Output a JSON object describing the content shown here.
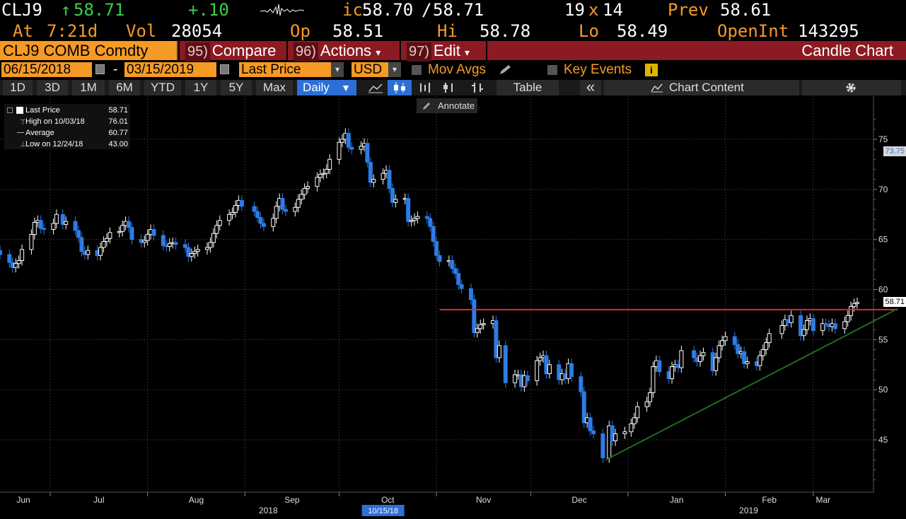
{
  "header": {
    "ticker": "CLJ9",
    "arrow": "↑",
    "last": "58.71",
    "change": "+.10",
    "ic_prefix": "ic",
    "bid": "58.70",
    "ask": "58.71",
    "sep": "/",
    "size_a": "19",
    "size_x": "x",
    "size_b": "14",
    "prev_label": "Prev",
    "prev": "58.61",
    "at_label": "At",
    "time": "7:21d",
    "vol_label": "Vol",
    "vol": "28054",
    "op_label": "Op",
    "op": "58.51",
    "hi_label": "Hi",
    "hi": "58.78",
    "lo_label": "Lo",
    "lo": "58.49",
    "oi_label": "OpenInt",
    "oi": "143295"
  },
  "menubar": {
    "security": "CLJ9 COMB Comdty",
    "compare_num": "95)",
    "compare": "Compare",
    "actions_num": "96)",
    "actions": "Actions",
    "edit_num": "97)",
    "edit": "Edit",
    "caret": "▾",
    "title": "Candle Chart"
  },
  "daterow": {
    "start": "06/15/2018",
    "dash": "-",
    "end": "03/15/2019",
    "field": "Last Price",
    "currency": "USD",
    "mov_avgs": "Mov Avgs",
    "key_events": "Key Events",
    "info": "i"
  },
  "toolbar": {
    "periods": [
      "1D",
      "3D",
      "1M",
      "6M",
      "YTD",
      "1Y",
      "5Y",
      "Max"
    ],
    "freq": "Daily",
    "table": "Table",
    "collapse": "«",
    "chart_content": "Chart Content"
  },
  "annotate": "Annotate",
  "legend": {
    "items": [
      {
        "label": "Last Price",
        "value": "58.71"
      },
      {
        "label": "High on 10/03/18",
        "value": "76.01"
      },
      {
        "label": "Average",
        "value": "60.77"
      },
      {
        "label": "Low on 12/24/18",
        "value": "43.00"
      }
    ]
  },
  "price_tags": {
    "upper": "73.75",
    "last": "58.71",
    "last_color": "#000000",
    "upper_color": "#3a6fd8"
  },
  "colors": {
    "accent": "#f59a25",
    "up_candle": "#ffffff",
    "down_candle": "#2d7be6",
    "resistance": "#e02b2b",
    "trendline": "#1f6b1f",
    "menubar": "#8c1a22"
  },
  "chart_data": {
    "type": "candlestick",
    "frequency": "Daily",
    "ylim": [
      40,
      78
    ],
    "yticks": [
      45,
      50,
      55,
      60,
      65,
      70,
      75
    ],
    "xlim": [
      "2018-06-15",
      "2019-03-15"
    ],
    "xticks": [
      {
        "date": "2018-06-15",
        "label": "Jun"
      },
      {
        "date": "2018-07-01",
        "label": "Jul"
      },
      {
        "date": "2018-08-01",
        "label": "Aug"
      },
      {
        "date": "2018-09-01",
        "label": "Sep"
      },
      {
        "date": "2018-10-01",
        "label": "Oct"
      },
      {
        "date": "2018-11-01",
        "label": "Nov"
      },
      {
        "date": "2018-12-01",
        "label": "Dec"
      },
      {
        "date": "2019-01-01",
        "label": "Jan"
      },
      {
        "date": "2019-02-01",
        "label": "Feb"
      },
      {
        "date": "2019-03-01",
        "label": "Mar"
      }
    ],
    "year_labels": [
      {
        "date": "2018-09-01",
        "label": "2018"
      },
      {
        "date": "2019-02-01",
        "label": "2019"
      }
    ],
    "crosshair_date_label": "10/15/18",
    "closes": [
      {
        "date": "2018-06-15",
        "value": 63.5
      },
      {
        "date": "2018-06-18",
        "value": 62.7
      },
      {
        "date": "2018-06-19",
        "value": 62.2
      },
      {
        "date": "2018-06-20",
        "value": 62.6
      },
      {
        "date": "2018-06-21",
        "value": 62.9
      },
      {
        "date": "2018-06-22",
        "value": 64.0
      },
      {
        "date": "2018-06-25",
        "value": 65.5
      },
      {
        "date": "2018-06-26",
        "value": 66.7
      },
      {
        "date": "2018-06-27",
        "value": 66.9
      },
      {
        "date": "2018-06-28",
        "value": 66.1
      },
      {
        "date": "2018-06-29",
        "value": 66.0
      },
      {
        "date": "2018-07-02",
        "value": 66.6
      },
      {
        "date": "2018-07-03",
        "value": 67.5
      },
      {
        "date": "2018-07-05",
        "value": 66.5
      },
      {
        "date": "2018-07-06",
        "value": 66.8
      },
      {
        "date": "2018-07-09",
        "value": 65.9
      },
      {
        "date": "2018-07-10",
        "value": 65.2
      },
      {
        "date": "2018-07-11",
        "value": 63.8
      },
      {
        "date": "2018-07-12",
        "value": 63.5
      },
      {
        "date": "2018-07-13",
        "value": 63.9
      },
      {
        "date": "2018-07-16",
        "value": 63.4
      },
      {
        "date": "2018-07-17",
        "value": 64.2
      },
      {
        "date": "2018-07-18",
        "value": 64.8
      },
      {
        "date": "2018-07-19",
        "value": 65.1
      },
      {
        "date": "2018-07-20",
        "value": 65.7
      },
      {
        "date": "2018-07-23",
        "value": 65.8
      },
      {
        "date": "2018-07-24",
        "value": 66.4
      },
      {
        "date": "2018-07-25",
        "value": 66.8
      },
      {
        "date": "2018-07-26",
        "value": 66.2
      },
      {
        "date": "2018-07-27",
        "value": 65.0
      },
      {
        "date": "2018-07-30",
        "value": 64.7
      },
      {
        "date": "2018-07-31",
        "value": 64.9
      },
      {
        "date": "2018-08-01",
        "value": 65.5
      },
      {
        "date": "2018-08-02",
        "value": 66.0
      },
      {
        "date": "2018-08-03",
        "value": 65.4
      },
      {
        "date": "2018-08-06",
        "value": 64.4
      },
      {
        "date": "2018-08-07",
        "value": 64.3
      },
      {
        "date": "2018-08-08",
        "value": 64.6
      },
      {
        "date": "2018-08-09",
        "value": 64.7
      },
      {
        "date": "2018-08-10",
        "value": 64.5
      },
      {
        "date": "2018-08-13",
        "value": 64.2
      },
      {
        "date": "2018-08-14",
        "value": 63.3
      },
      {
        "date": "2018-08-15",
        "value": 63.6
      },
      {
        "date": "2018-08-16",
        "value": 63.8
      },
      {
        "date": "2018-08-17",
        "value": 64.0
      },
      {
        "date": "2018-08-20",
        "value": 64.2
      },
      {
        "date": "2018-08-21",
        "value": 64.7
      },
      {
        "date": "2018-08-22",
        "value": 65.6
      },
      {
        "date": "2018-08-23",
        "value": 66.4
      },
      {
        "date": "2018-08-24",
        "value": 66.9
      },
      {
        "date": "2018-08-27",
        "value": 67.5
      },
      {
        "date": "2018-08-28",
        "value": 67.7
      },
      {
        "date": "2018-08-29",
        "value": 68.4
      },
      {
        "date": "2018-08-30",
        "value": 68.9
      },
      {
        "date": "2018-08-31",
        "value": 68.3
      },
      {
        "date": "2018-09-04",
        "value": 67.8
      },
      {
        "date": "2018-09-05",
        "value": 67.2
      },
      {
        "date": "2018-09-06",
        "value": 66.6
      },
      {
        "date": "2018-09-07",
        "value": 66.3
      },
      {
        "date": "2018-09-10",
        "value": 67.1
      },
      {
        "date": "2018-09-11",
        "value": 68.3
      },
      {
        "date": "2018-09-12",
        "value": 69.1
      },
      {
        "date": "2018-09-13",
        "value": 68.0
      },
      {
        "date": "2018-09-14",
        "value": 67.8
      },
      {
        "date": "2018-09-17",
        "value": 68.2
      },
      {
        "date": "2018-09-18",
        "value": 69.0
      },
      {
        "date": "2018-09-19",
        "value": 69.5
      },
      {
        "date": "2018-09-20",
        "value": 70.1
      },
      {
        "date": "2018-09-21",
        "value": 70.3
      },
      {
        "date": "2018-09-24",
        "value": 71.2
      },
      {
        "date": "2018-09-25",
        "value": 71.5
      },
      {
        "date": "2018-09-26",
        "value": 71.6
      },
      {
        "date": "2018-09-27",
        "value": 72.0
      },
      {
        "date": "2018-09-28",
        "value": 73.0
      },
      {
        "date": "2018-10-01",
        "value": 74.7
      },
      {
        "date": "2018-10-02",
        "value": 75.0
      },
      {
        "date": "2018-10-03",
        "value": 75.6
      },
      {
        "date": "2018-10-04",
        "value": 74.2
      },
      {
        "date": "2018-10-05",
        "value": 74.0
      },
      {
        "date": "2018-10-08",
        "value": 74.3
      },
      {
        "date": "2018-10-09",
        "value": 74.6
      },
      {
        "date": "2018-10-10",
        "value": 72.7
      },
      {
        "date": "2018-10-11",
        "value": 70.7
      },
      {
        "date": "2018-10-12",
        "value": 71.0
      },
      {
        "date": "2018-10-15",
        "value": 71.6
      },
      {
        "date": "2018-10-16",
        "value": 71.9
      },
      {
        "date": "2018-10-17",
        "value": 70.1
      },
      {
        "date": "2018-10-18",
        "value": 68.7
      },
      {
        "date": "2018-10-19",
        "value": 69.0
      },
      {
        "date": "2018-10-22",
        "value": 69.1
      },
      {
        "date": "2018-10-23",
        "value": 66.8
      },
      {
        "date": "2018-10-24",
        "value": 66.9
      },
      {
        "date": "2018-10-25",
        "value": 67.1
      },
      {
        "date": "2018-10-26",
        "value": 67.3
      },
      {
        "date": "2018-10-29",
        "value": 67.1
      },
      {
        "date": "2018-10-30",
        "value": 66.3
      },
      {
        "date": "2018-10-31",
        "value": 64.8
      },
      {
        "date": "2018-11-01",
        "value": 63.4
      },
      {
        "date": "2018-11-02",
        "value": 62.8
      },
      {
        "date": "2018-11-05",
        "value": 62.9
      },
      {
        "date": "2018-11-06",
        "value": 62.1
      },
      {
        "date": "2018-11-07",
        "value": 61.6
      },
      {
        "date": "2018-11-08",
        "value": 60.5
      },
      {
        "date": "2018-11-09",
        "value": 60.1
      },
      {
        "date": "2018-11-12",
        "value": 59.0
      },
      {
        "date": "2018-11-13",
        "value": 55.7
      },
      {
        "date": "2018-11-14",
        "value": 56.1
      },
      {
        "date": "2018-11-15",
        "value": 56.5
      },
      {
        "date": "2018-11-16",
        "value": 56.6
      },
      {
        "date": "2018-11-19",
        "value": 56.9
      },
      {
        "date": "2018-11-20",
        "value": 53.2
      },
      {
        "date": "2018-11-21",
        "value": 54.4
      },
      {
        "date": "2018-11-23",
        "value": 50.7
      },
      {
        "date": "2018-11-26",
        "value": 51.5
      },
      {
        "date": "2018-11-27",
        "value": 51.5
      },
      {
        "date": "2018-11-28",
        "value": 50.3
      },
      {
        "date": "2018-11-29",
        "value": 51.4
      },
      {
        "date": "2018-11-30",
        "value": 50.9
      },
      {
        "date": "2018-12-03",
        "value": 52.9
      },
      {
        "date": "2018-12-04",
        "value": 53.2
      },
      {
        "date": "2018-12-05",
        "value": 53.4
      },
      {
        "date": "2018-12-06",
        "value": 51.6
      },
      {
        "date": "2018-12-07",
        "value": 52.5
      },
      {
        "date": "2018-12-10",
        "value": 51.0
      },
      {
        "date": "2018-12-11",
        "value": 51.6
      },
      {
        "date": "2018-12-12",
        "value": 51.1
      },
      {
        "date": "2018-12-13",
        "value": 52.6
      },
      {
        "date": "2018-12-14",
        "value": 51.3
      },
      {
        "date": "2018-12-17",
        "value": 49.8
      },
      {
        "date": "2018-12-18",
        "value": 46.7
      },
      {
        "date": "2018-12-19",
        "value": 47.2
      },
      {
        "date": "2018-12-20",
        "value": 45.9
      },
      {
        "date": "2018-12-21",
        "value": 45.6
      },
      {
        "date": "2018-12-24",
        "value": 43.2
      },
      {
        "date": "2018-12-26",
        "value": 46.4
      },
      {
        "date": "2018-12-27",
        "value": 44.9
      },
      {
        "date": "2018-12-28",
        "value": 45.6
      },
      {
        "date": "2018-12-31",
        "value": 45.8
      },
      {
        "date": "2019-01-02",
        "value": 46.6
      },
      {
        "date": "2019-01-03",
        "value": 47.2
      },
      {
        "date": "2019-01-04",
        "value": 48.3
      },
      {
        "date": "2019-01-07",
        "value": 48.8
      },
      {
        "date": "2019-01-08",
        "value": 49.7
      },
      {
        "date": "2019-01-09",
        "value": 52.3
      },
      {
        "date": "2019-01-10",
        "value": 52.9
      },
      {
        "date": "2019-01-11",
        "value": 51.8
      },
      {
        "date": "2019-01-14",
        "value": 51.1
      },
      {
        "date": "2019-01-15",
        "value": 52.3
      },
      {
        "date": "2019-01-16",
        "value": 52.5
      },
      {
        "date": "2019-01-17",
        "value": 52.2
      },
      {
        "date": "2019-01-18",
        "value": 53.9
      },
      {
        "date": "2019-01-22",
        "value": 53.2
      },
      {
        "date": "2019-01-23",
        "value": 52.8
      },
      {
        "date": "2019-01-24",
        "value": 53.4
      },
      {
        "date": "2019-01-25",
        "value": 53.7
      },
      {
        "date": "2019-01-28",
        "value": 51.9
      },
      {
        "date": "2019-01-29",
        "value": 53.2
      },
      {
        "date": "2019-01-30",
        "value": 54.4
      },
      {
        "date": "2019-01-31",
        "value": 54.9
      },
      {
        "date": "2019-02-01",
        "value": 55.3
      },
      {
        "date": "2019-02-04",
        "value": 54.5
      },
      {
        "date": "2019-02-05",
        "value": 53.6
      },
      {
        "date": "2019-02-06",
        "value": 53.8
      },
      {
        "date": "2019-02-07",
        "value": 52.6
      },
      {
        "date": "2019-02-08",
        "value": 52.8
      },
      {
        "date": "2019-02-11",
        "value": 52.4
      },
      {
        "date": "2019-02-12",
        "value": 53.4
      },
      {
        "date": "2019-02-13",
        "value": 54.0
      },
      {
        "date": "2019-02-14",
        "value": 54.7
      },
      {
        "date": "2019-02-15",
        "value": 55.6
      },
      {
        "date": "2019-02-19",
        "value": 56.4
      },
      {
        "date": "2019-02-20",
        "value": 57.0
      },
      {
        "date": "2019-02-21",
        "value": 56.7
      },
      {
        "date": "2019-02-22",
        "value": 57.4
      },
      {
        "date": "2019-02-25",
        "value": 55.4
      },
      {
        "date": "2019-02-26",
        "value": 56.0
      },
      {
        "date": "2019-02-27",
        "value": 56.9
      },
      {
        "date": "2019-02-28",
        "value": 57.1
      },
      {
        "date": "2019-03-01",
        "value": 55.9
      },
      {
        "date": "2019-03-04",
        "value": 56.6
      },
      {
        "date": "2019-03-05",
        "value": 56.5
      },
      {
        "date": "2019-03-06",
        "value": 56.3
      },
      {
        "date": "2019-03-07",
        "value": 56.6
      },
      {
        "date": "2019-03-08",
        "value": 56.1
      },
      {
        "date": "2019-03-11",
        "value": 56.8
      },
      {
        "date": "2019-03-12",
        "value": 57.4
      },
      {
        "date": "2019-03-13",
        "value": 58.3
      },
      {
        "date": "2019-03-14",
        "value": 58.6
      },
      {
        "date": "2019-03-15",
        "value": 58.71
      }
    ],
    "annotations": [
      {
        "type": "horizontal_line",
        "value": 58.0,
        "from": "2018-11-02",
        "to": "2019-03-15",
        "color": "#e02b2b"
      },
      {
        "type": "trend_line",
        "from": {
          "date": "2018-12-24",
          "value": 43.0
        },
        "to": {
          "date": "2019-03-15",
          "value": 57.8
        },
        "color": "#1f6b1f"
      }
    ]
  }
}
